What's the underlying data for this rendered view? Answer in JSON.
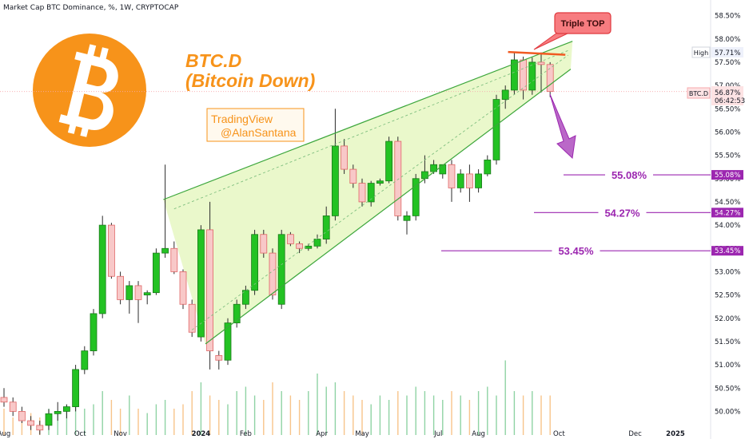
{
  "header": {
    "title": "Market Cap BTC Dominance, %, 1W, CRYPTOCAP"
  },
  "logo": {
    "icon": "bitcoin-logo-icon",
    "color": "#f7931a"
  },
  "annotations": {
    "heading_line1": "BTC.D",
    "heading_line2": "(Bitcoin Down)",
    "heading_color": "#f7931a",
    "watermark_line1": "TradingView",
    "watermark_line2": "@AlanSantana",
    "callout": "Triple TOP",
    "callout_color": "#f23645",
    "arrow_color": "#9c27b0",
    "wedge_color": "#e6f7c2"
  },
  "price_labels": {
    "high_tag": "High",
    "high_value": "57.71%",
    "symbol_tag": "BTC.D",
    "last_value": "56.87%",
    "countdown": "06:42:53"
  },
  "targets": [
    {
      "label": "55.08%",
      "value": 55.08
    },
    {
      "label": "54.27%",
      "value": 54.27
    },
    {
      "label": "53.45%",
      "value": 53.45
    }
  ],
  "chart_data": {
    "type": "candlestick",
    "interval": "1W",
    "y_axis": {
      "min": 49.75,
      "max": 58.75,
      "position": "right",
      "ticks": [
        "58.50%",
        "58.00%",
        "57.50%",
        "57.00%",
        "56.50%",
        "56.00%",
        "55.50%",
        "55.00%",
        "54.50%",
        "54.00%",
        "53.50%",
        "53.00%",
        "52.50%",
        "52.00%",
        "51.50%",
        "51.00%",
        "50.50%",
        "50.00%"
      ]
    },
    "x_axis": {
      "ticks": [
        {
          "label": "Aug",
          "week": 0
        },
        {
          "label": "Oct",
          "week": 8.5
        },
        {
          "label": "Nov",
          "week": 13
        },
        {
          "label": "2024",
          "week": 22
        },
        {
          "label": "Feb",
          "week": 27
        },
        {
          "label": "Apr",
          "week": 35.5
        },
        {
          "label": "May",
          "week": 40
        },
        {
          "label": "Jul",
          "week": 48.5
        },
        {
          "label": "Aug",
          "week": 53
        },
        {
          "label": "Oct",
          "week": 62
        },
        {
          "label": "Dec",
          "week": 70.5
        },
        {
          "label": "2025",
          "week": 75
        }
      ]
    },
    "candles": [
      [
        50.3,
        50.5,
        50.1,
        50.2
      ],
      [
        50.2,
        50.3,
        49.9,
        50.0
      ],
      [
        50.0,
        50.1,
        49.75,
        49.8
      ],
      [
        49.8,
        49.9,
        49.6,
        49.7
      ],
      [
        49.7,
        49.8,
        49.5,
        49.6
      ],
      [
        49.7,
        50.05,
        49.6,
        49.95
      ],
      [
        49.95,
        50.2,
        49.8,
        50.0
      ],
      [
        50.0,
        50.15,
        49.85,
        50.1
      ],
      [
        50.1,
        51.0,
        50.0,
        50.9
      ],
      [
        50.9,
        51.4,
        50.8,
        51.3
      ],
      [
        51.3,
        52.2,
        51.2,
        52.1
      ],
      [
        52.1,
        54.2,
        52.0,
        54.0
      ],
      [
        54.0,
        54.05,
        52.85,
        52.9
      ],
      [
        52.9,
        53.0,
        52.3,
        52.4
      ],
      [
        52.4,
        52.8,
        52.1,
        52.7
      ],
      [
        52.7,
        52.8,
        51.9,
        52.4
      ],
      [
        52.5,
        52.6,
        52.3,
        52.55
      ],
      [
        52.55,
        53.5,
        52.5,
        53.4
      ],
      [
        53.4,
        55.3,
        53.3,
        53.5
      ],
      [
        53.5,
        53.65,
        52.95,
        53.0
      ],
      [
        53.0,
        53.05,
        52.2,
        52.3
      ],
      [
        52.3,
        52.4,
        51.6,
        51.7
      ],
      [
        51.6,
        54.0,
        51.5,
        53.9
      ],
      [
        53.9,
        54.5,
        50.9,
        51.3
      ],
      [
        51.2,
        51.3,
        50.9,
        51.1
      ],
      [
        51.1,
        52.0,
        51.0,
        51.9
      ],
      [
        51.9,
        52.4,
        51.8,
        52.3
      ],
      [
        52.3,
        52.7,
        52.2,
        52.6
      ],
      [
        52.6,
        53.9,
        52.5,
        53.8
      ],
      [
        53.8,
        53.9,
        53.3,
        53.4
      ],
      [
        53.4,
        53.5,
        52.4,
        52.5
      ],
      [
        52.3,
        53.9,
        52.2,
        53.8
      ],
      [
        53.8,
        53.85,
        53.55,
        53.6
      ],
      [
        53.6,
        53.65,
        53.4,
        53.5
      ],
      [
        53.5,
        53.6,
        53.45,
        53.55
      ],
      [
        53.55,
        53.8,
        53.5,
        53.7
      ],
      [
        53.7,
        54.4,
        53.6,
        54.2
      ],
      [
        54.2,
        56.5,
        54.1,
        55.7
      ],
      [
        55.7,
        55.85,
        55.1,
        55.2
      ],
      [
        55.2,
        55.3,
        54.8,
        54.9
      ],
      [
        54.9,
        55.0,
        54.4,
        54.5
      ],
      [
        54.5,
        54.95,
        54.4,
        54.9
      ],
      [
        54.9,
        55.0,
        54.85,
        54.95
      ],
      [
        54.95,
        55.9,
        54.9,
        55.8
      ],
      [
        55.8,
        55.9,
        54.1,
        54.2
      ],
      [
        54.1,
        54.3,
        53.8,
        54.2
      ],
      [
        54.2,
        55.1,
        54.1,
        55.0
      ],
      [
        55.0,
        55.5,
        54.9,
        55.15
      ],
      [
        55.15,
        55.4,
        55.1,
        55.3
      ],
      [
        55.1,
        55.3,
        55.0,
        55.3
      ],
      [
        55.3,
        55.4,
        54.5,
        54.8
      ],
      [
        54.8,
        55.2,
        54.7,
        55.1
      ],
      [
        55.1,
        55.3,
        54.5,
        54.8
      ],
      [
        54.8,
        55.2,
        54.7,
        55.1
      ],
      [
        55.1,
        55.5,
        55.05,
        55.4
      ],
      [
        55.4,
        56.8,
        55.3,
        56.7
      ],
      [
        56.7,
        57.0,
        56.5,
        56.9
      ],
      [
        56.9,
        57.7,
        56.8,
        57.55
      ],
      [
        57.55,
        57.62,
        56.7,
        56.9
      ],
      [
        56.9,
        57.6,
        56.8,
        57.5
      ],
      [
        57.5,
        57.71,
        56.85,
        57.45
      ],
      [
        57.45,
        57.5,
        56.75,
        56.87
      ]
    ],
    "volume": {
      "relative": [
        0.3,
        0.2,
        0.15,
        0.25,
        0.2,
        0.3,
        0.25,
        0.35,
        0.4,
        0.3,
        0.35,
        0.5,
        0.4,
        0.3,
        0.45,
        0.3,
        0.25,
        0.35,
        0.4,
        0.3,
        0.35,
        0.5,
        0.6,
        0.45,
        0.4,
        0.35,
        0.5,
        0.55,
        0.45,
        0.4,
        0.6,
        0.5,
        0.45,
        0.4,
        0.5,
        0.7,
        0.55,
        0.6,
        0.5,
        0.45,
        0.4,
        0.35,
        0.45,
        0.4,
        0.5,
        0.45,
        0.55,
        0.5,
        0.45,
        0.4,
        0.5,
        0.45,
        0.4,
        0.5,
        0.55,
        0.45,
        0.85,
        0.5,
        0.45,
        0.5,
        0.45,
        0.45
      ]
    },
    "overlays": {
      "wedge_upper": {
        "from": [
          17.8,
          54.55
        ],
        "to": [
          63.5,
          57.95
        ]
      },
      "wedge_lower": {
        "from": [
          22.5,
          51.45
        ],
        "to": [
          63.3,
          57.35
        ]
      },
      "wedge_inner_upper": {
        "from": [
          19,
          54.35
        ],
        "to": [
          63,
          57.75
        ]
      },
      "wedge_inner_lower": {
        "from": [
          21,
          51.75
        ],
        "to": [
          63,
          57.65
        ]
      },
      "resistance": {
        "from": [
          56.3,
          57.72
        ],
        "to": [
          62.7,
          57.66
        ],
        "color": "#f05a22"
      }
    }
  }
}
